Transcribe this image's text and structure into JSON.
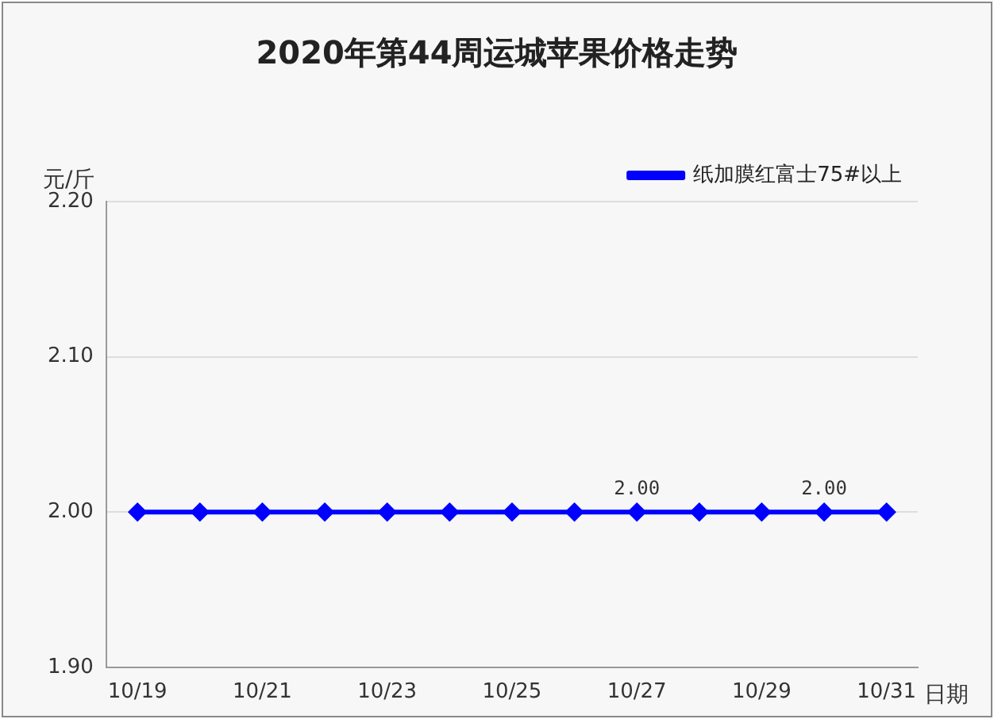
{
  "chart_data": {
    "type": "line",
    "title": "2020年第44周运城苹果价格走势",
    "xlabel": "日期",
    "ylabel": "元/斤",
    "categories": [
      "10/19",
      null,
      "10/21",
      null,
      "10/23",
      null,
      "10/25",
      null,
      "10/27",
      null,
      "10/29",
      null,
      "10/31"
    ],
    "series": [
      {
        "name": "纸加膜红富士75#以上",
        "color": "#0000ff",
        "values": [
          2,
          2,
          2,
          2,
          2,
          2,
          2,
          2,
          2,
          2,
          2,
          2,
          2
        ],
        "value_labels": [
          null,
          null,
          null,
          null,
          null,
          null,
          null,
          null,
          "2.00",
          null,
          null,
          "2.00",
          null
        ]
      }
    ],
    "ylim": [
      1.9,
      2.2
    ],
    "yticks": [
      {
        "value": 1.9,
        "label": "1.90"
      },
      {
        "value": 2,
        "label": "2.00"
      },
      {
        "value": 2.1,
        "label": "2.10"
      },
      {
        "value": 2.2,
        "label": "2.20"
      }
    ],
    "grid": "y",
    "legend": "top right",
    "marker": "diamond",
    "line_style": "solid"
  }
}
